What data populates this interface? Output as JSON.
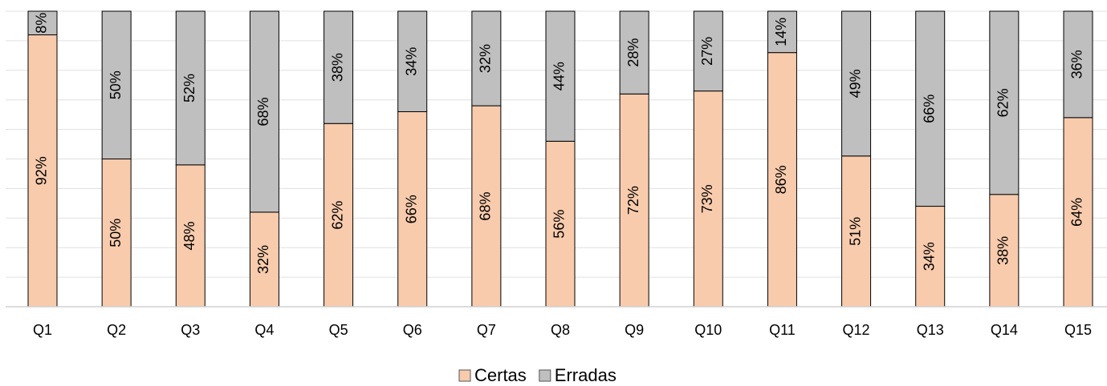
{
  "chart_data": {
    "type": "stacked_bar",
    "categories": [
      "Q1",
      "Q2",
      "Q3",
      "Q4",
      "Q5",
      "Q6",
      "Q7",
      "Q8",
      "Q9",
      "Q10",
      "Q11",
      "Q12",
      "Q13",
      "Q14",
      "Q15"
    ],
    "series": [
      {
        "name": "Certas",
        "color": "#f8cbad",
        "values": [
          92,
          50,
          48,
          32,
          62,
          66,
          68,
          56,
          72,
          73,
          86,
          51,
          34,
          38,
          64
        ],
        "value_labels": [
          "92%",
          "50%",
          "48%",
          "32%",
          "62%",
          "66%",
          "68%",
          "56%",
          "72%",
          "73%",
          "86%",
          "51%",
          "34%",
          "38%",
          "64%"
        ]
      },
      {
        "name": "Erradas",
        "color": "#bfbfbf",
        "values": [
          8,
          50,
          52,
          68,
          38,
          34,
          32,
          44,
          28,
          27,
          14,
          49,
          66,
          62,
          36
        ],
        "value_labels": [
          "8%",
          "50%",
          "52%",
          "68%",
          "38%",
          "34%",
          "32%",
          "44%",
          "28%",
          "27%",
          "14%",
          "49%",
          "66%",
          "62%",
          "36%"
        ]
      }
    ],
    "ylim": [
      0,
      100
    ],
    "yticks": [
      0,
      10,
      20,
      30,
      40,
      50,
      60,
      70,
      80,
      90,
      100
    ],
    "grid": true,
    "legend": "bottom"
  }
}
